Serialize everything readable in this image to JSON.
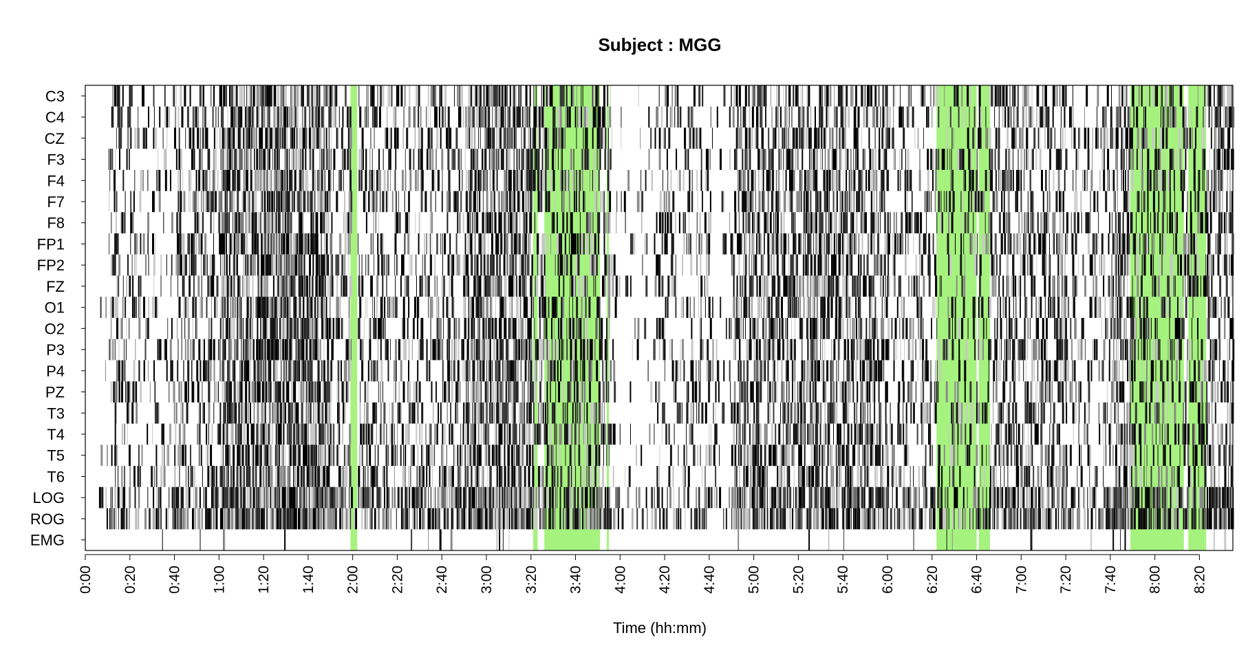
{
  "chart_data": {
    "type": "heatmap",
    "title": "Subject : MGG",
    "xlabel": "Time (hh:mm)",
    "ylabel": "",
    "channels": [
      "C3",
      "C4",
      "CZ",
      "F3",
      "F4",
      "F7",
      "F8",
      "FP1",
      "FP2",
      "FZ",
      "O1",
      "O2",
      "P3",
      "P4",
      "PZ",
      "T3",
      "T4",
      "T5",
      "T6",
      "LOG",
      "ROG",
      "EMG"
    ],
    "x_ticks": [
      "0:00",
      "0:20",
      "0:40",
      "1:00",
      "1:20",
      "1:40",
      "2:00",
      "2:20",
      "2:40",
      "3:00",
      "3:20",
      "3:40",
      "4:00",
      "4:20",
      "4:40",
      "5:00",
      "5:20",
      "5:40",
      "6:00",
      "6:20",
      "6:40",
      "7:00",
      "7:20",
      "7:40",
      "8:00",
      "8:20"
    ],
    "x_range_minutes": [
      0,
      515
    ],
    "highlight_color": "#a6f27e",
    "highlight_intervals_minutes": [
      [
        119,
        122
      ],
      [
        201,
        203
      ],
      [
        206,
        231
      ],
      [
        234,
        235
      ],
      [
        382,
        400
      ],
      [
        401,
        406
      ],
      [
        469,
        493
      ],
      [
        495,
        503
      ]
    ],
    "activity_profile": {
      "description_scale": "0 = blank, 1 = dense",
      "segments_minutes": [
        [
          0,
          10,
          0.05
        ],
        [
          10,
          20,
          0.35
        ],
        [
          20,
          40,
          0.2
        ],
        [
          40,
          60,
          0.4
        ],
        [
          60,
          110,
          0.75
        ],
        [
          110,
          119,
          0.4
        ],
        [
          122,
          170,
          0.35
        ],
        [
          170,
          200,
          0.7
        ],
        [
          200,
          235,
          0.45
        ],
        [
          235,
          255,
          0.1
        ],
        [
          255,
          280,
          0.25
        ],
        [
          280,
          290,
          0.1
        ],
        [
          290,
          360,
          0.55
        ],
        [
          360,
          382,
          0.3
        ],
        [
          382,
          406,
          0.25
        ],
        [
          406,
          440,
          0.45
        ],
        [
          440,
          460,
          0.25
        ],
        [
          460,
          470,
          0.6
        ],
        [
          470,
          503,
          0.35
        ],
        [
          503,
          515,
          0.5
        ]
      ]
    }
  }
}
